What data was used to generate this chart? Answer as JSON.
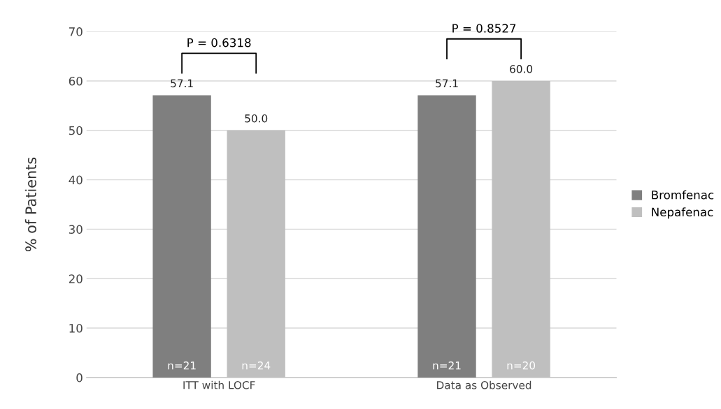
{
  "chart_data": {
    "type": "bar",
    "categories": [
      "ITT with LOCF",
      "Data as Observed"
    ],
    "ylabel": "% of Patients",
    "series": [
      {
        "name": "Bromfenac",
        "color": "#7f7f7f",
        "values": [
          57.1,
          57.1
        ],
        "value_labels": [
          "57.1",
          "57.1"
        ]
      },
      {
        "name": "Nepafenac",
        "color": "#bfbfbf",
        "values": [
          50.0,
          60.0
        ],
        "value_labels": [
          "50.0",
          "60.0"
        ]
      }
    ],
    "ylim": [
      0,
      70
    ],
    "yticks": [
      0,
      10,
      20,
      30,
      40,
      50,
      60,
      70
    ],
    "grid": "y",
    "legend": "right",
    "annotations": [
      "P = 0.6318",
      "P = 0.8527",
      "n=21",
      "n=24",
      "n=21",
      "n=20"
    ]
  }
}
